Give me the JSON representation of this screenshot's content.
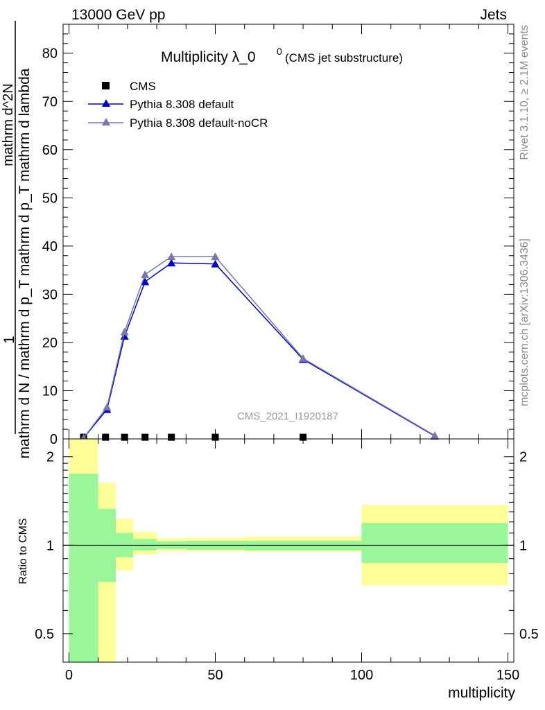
{
  "header": {
    "left": "13000 GeV pp",
    "right": "Jets"
  },
  "side_labels": {
    "rivet": "Rivet 3.1.10, ≥ 2.1M events",
    "mcplots": "mcplots.cern.ch [arXiv:1306.3436]"
  },
  "chart_data": [
    {
      "type": "line",
      "title": "Multiplicity λ_0",
      "title_sup": "0",
      "subtitle": "(CMS jet substructure)",
      "ylabel_numerator": "1",
      "ylabel_denominator": "mathrm d N / mathrm d p_T mathrm d p_T mathrm d lambda",
      "ylabel_fraction_top": "mathrm d^2N",
      "ylabel_fraction_bottom": "mathrm d p_T mathrm d p_T mathrm d lambda",
      "watermark": "CMS_2021_I1920187",
      "xlim": [
        -2,
        152
      ],
      "ylim": [
        0,
        86
      ],
      "yticks": [
        0,
        10,
        20,
        30,
        40,
        50,
        60,
        70,
        80
      ],
      "legend": {
        "placement": "top-left"
      },
      "series": [
        {
          "name": "CMS",
          "marker": "square",
          "color": "#000000",
          "x": [
            5,
            12.5,
            19,
            26,
            35,
            50,
            80
          ],
          "y": [
            0.2,
            0.2,
            0.2,
            0.2,
            0.2,
            0.2,
            0.2
          ]
        },
        {
          "name": "Pythia 8.308 default",
          "marker": "triangle",
          "color": "#0000cc",
          "x": [
            5,
            13,
            19,
            26,
            35,
            50,
            80,
            125
          ],
          "y": [
            0.2,
            6.1,
            21.3,
            32.6,
            36.5,
            36.3,
            16.5,
            0.6
          ]
        },
        {
          "name": "Pythia 8.308 default-noCR",
          "marker": "triangle",
          "color": "#7777aa",
          "x": [
            5,
            13,
            19,
            26,
            35,
            50,
            80,
            125
          ],
          "y": [
            0.2,
            6.6,
            22.2,
            34.1,
            37.8,
            37.8,
            16.7,
            0.7
          ]
        }
      ]
    },
    {
      "type": "area",
      "ylabel": "Ratio to CMS",
      "xlabel": "multiplicity",
      "xlim": [
        -2,
        152
      ],
      "xticks": [
        0,
        50,
        100,
        150
      ],
      "ylim": [
        0.4,
        2.3
      ],
      "yticks": [
        0.5,
        1,
        2
      ],
      "reference_line": 1,
      "bands": [
        {
          "x0": 0,
          "x1": 10,
          "inner": [
            0.35,
            1.75
          ],
          "outer": [
            0.35,
            2.3
          ]
        },
        {
          "x0": 10,
          "x1": 16,
          "inner": [
            0.75,
            1.33
          ],
          "outer": [
            0.37,
            1.63
          ]
        },
        {
          "x0": 16,
          "x1": 22,
          "inner": [
            0.91,
            1.1
          ],
          "outer": [
            0.82,
            1.23
          ]
        },
        {
          "x0": 22,
          "x1": 30,
          "inner": [
            0.96,
            1.05
          ],
          "outer": [
            0.93,
            1.11
          ]
        },
        {
          "x0": 30,
          "x1": 40,
          "inner": [
            0.97,
            1.03
          ],
          "outer": [
            0.955,
            1.055
          ]
        },
        {
          "x0": 40,
          "x1": 60,
          "inner": [
            0.965,
            1.035
          ],
          "outer": [
            0.955,
            1.06
          ]
        },
        {
          "x0": 60,
          "x1": 100,
          "inner": [
            0.96,
            1.035
          ],
          "outer": [
            0.95,
            1.07
          ]
        },
        {
          "x0": 100,
          "x1": 150,
          "inner": [
            0.87,
            1.19
          ],
          "outer": [
            0.73,
            1.37
          ]
        }
      ],
      "colors": {
        "inner": "#99f799",
        "outer": "#ffff99"
      }
    }
  ]
}
